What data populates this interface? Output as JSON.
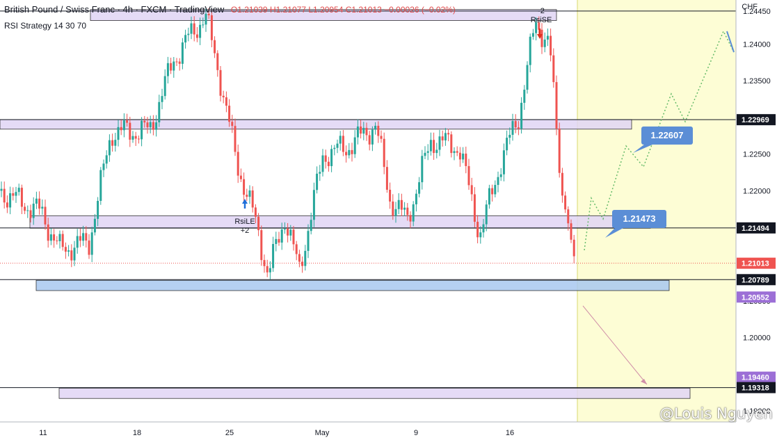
{
  "header": {
    "symbol": "British Pound / Swiss Franc",
    "interval": "4h",
    "exchange": "FXCM",
    "source": "TradingView",
    "ohlc": {
      "o": "O1.21039",
      "h": "H1.21077",
      "l": "L1.20954",
      "c": "C1.21013",
      "chg": "−0.00026 (−0.02%)"
    }
  },
  "strategy_label": "RSI Strategy 14 30 70",
  "currency": "CHF",
  "watermark": "@Louis Nguyen",
  "colors": {
    "up": "#26a69a",
    "down": "#ef5350",
    "zone": "#e1d5f5",
    "blue_zone": "#a8c8f0",
    "projection": "#66bb6a",
    "callout": "#5b8ed6",
    "future_bg": "#fdfdd5"
  },
  "chart_data": {
    "type": "candlestick",
    "x_ticks": [
      "11",
      "18",
      "25",
      "May",
      "9",
      "16"
    ],
    "y_ticks": [
      "1.24450",
      "1.24000",
      "1.23500",
      "1.23000",
      "1.22500",
      "1.22000",
      "1.21500",
      "1.21000",
      "1.20500",
      "1.20000",
      "1.19500",
      "1.19000"
    ],
    "ylim": [
      1.1885,
      1.246
    ],
    "price_labels": [
      {
        "value": 1.2445,
        "text": "1.24450",
        "style": "plain"
      },
      {
        "value": 1.22969,
        "text": "1.22969",
        "style": "dark"
      },
      {
        "value": 1.21494,
        "text": "1.21494",
        "style": "dark"
      },
      {
        "value": 1.21013,
        "text": "1.21013",
        "style": "red"
      },
      {
        "value": 1.20789,
        "text": "1.20789",
        "style": "dark"
      },
      {
        "value": 1.20552,
        "text": "1.20552",
        "style": "purple"
      },
      {
        "value": 1.1946,
        "text": "1.19460",
        "style": "purple"
      },
      {
        "value": 1.19318,
        "text": "1.19318",
        "style": "dark"
      }
    ],
    "horizontal_lines": [
      1.2445,
      1.22969,
      1.21494,
      1.20789,
      1.19318
    ],
    "zones": [
      {
        "top": 1.2447,
        "bottom": 1.2432,
        "kind": "purple"
      },
      {
        "top": 1.2297,
        "bottom": 1.2284,
        "kind": "purple"
      },
      {
        "top": 1.2166,
        "bottom": 1.2149,
        "kind": "purple"
      },
      {
        "top": 1.2078,
        "bottom": 1.2064,
        "kind": "blue"
      },
      {
        "top": 1.1931,
        "bottom": 1.1917,
        "kind": "purple"
      }
    ],
    "callouts": [
      {
        "text": "1.22607",
        "value": 1.22607
      },
      {
        "text": "1.21473",
        "value": 1.21473
      }
    ],
    "signals": [
      {
        "label": "RsiLE",
        "sub": "+2",
        "direction": "up"
      },
      {
        "label": "RsiSE",
        "sub": "-2",
        "direction": "down"
      }
    ],
    "last_price": 1.21013
  }
}
